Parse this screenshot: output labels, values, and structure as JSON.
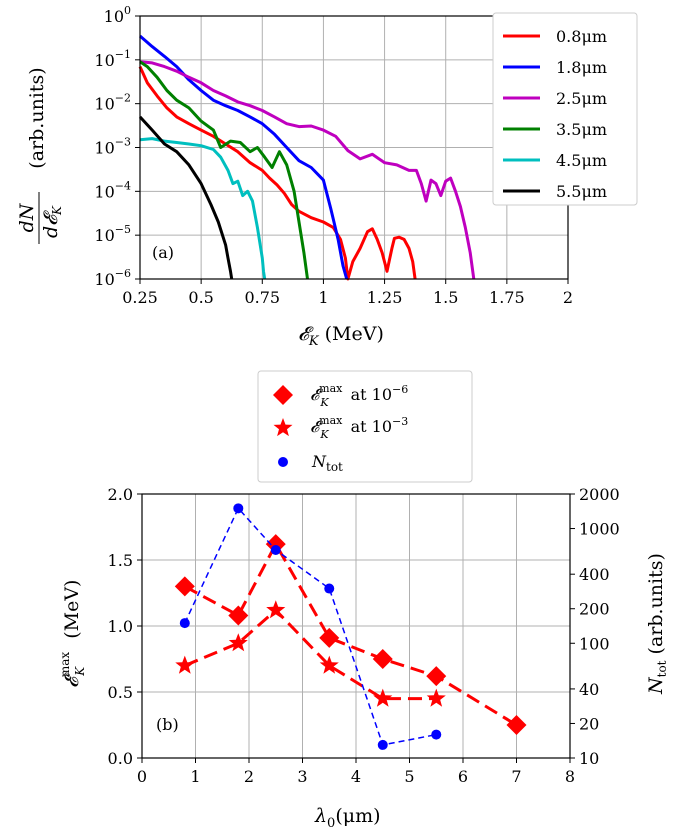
{
  "chart_data": [
    {
      "panel": "(a)",
      "type": "line",
      "xlabel": "𝓔_K (MeV)",
      "ylabel": "dN/d𝓔_K (arb.units)",
      "yscale": "log",
      "xlim": [
        0.25,
        2.0
      ],
      "ylim": [
        1e-06,
        1.0
      ],
      "x_ticks": [
        "0.25",
        "0.5",
        "0.75",
        "1",
        "1.25",
        "1.5",
        "1.75",
        "2"
      ],
      "x_tick_values": [
        0.25,
        0.5,
        0.75,
        1.0,
        1.25,
        1.5,
        1.75,
        2.0
      ],
      "y_tick_exponents": [
        "0",
        "−1",
        "−2",
        "−3",
        "−4",
        "−5",
        "−6"
      ],
      "legend_position": "top-right",
      "series": [
        {
          "name": "0.8μm",
          "color": "#ff0000",
          "x": [
            0.25,
            0.28,
            0.32,
            0.36,
            0.4,
            0.45,
            0.5,
            0.55,
            0.6,
            0.65,
            0.7,
            0.75,
            0.78,
            0.81,
            0.84,
            0.87,
            0.9,
            0.95,
            1.0,
            1.04,
            1.07,
            1.09,
            1.1,
            1.12,
            1.15,
            1.18,
            1.2,
            1.22,
            1.24,
            1.26,
            1.28,
            1.29,
            1.31,
            1.33,
            1.35,
            1.365,
            1.375
          ],
          "y": [
            0.07,
            0.03,
            0.015,
            0.008,
            0.005,
            0.0035,
            0.0025,
            0.0018,
            0.0012,
            0.0008,
            0.00045,
            0.0003,
            0.0002,
            0.00014,
            9e-05,
            5e-05,
            3.5e-05,
            2.5e-05,
            2e-05,
            1.5e-05,
            8e-06,
            3e-06,
            1e-06,
            2.5e-06,
            5e-06,
            1.2e-05,
            1.4e-05,
            8e-06,
            4e-06,
            1.5e-06,
            5e-06,
            8.5e-06,
            9e-06,
            8e-06,
            5e-06,
            2.5e-06,
            1e-06
          ]
        },
        {
          "name": "1.8μm",
          "color": "#0000ff",
          "x": [
            0.25,
            0.3,
            0.35,
            0.4,
            0.45,
            0.5,
            0.55,
            0.6,
            0.65,
            0.7,
            0.75,
            0.8,
            0.85,
            0.9,
            0.95,
            1.0,
            1.03,
            1.06,
            1.08,
            1.095
          ],
          "y": [
            0.35,
            0.2,
            0.12,
            0.07,
            0.035,
            0.02,
            0.012,
            0.009,
            0.007,
            0.005,
            0.0035,
            0.002,
            0.001,
            0.0005,
            0.00035,
            0.00018,
            4e-05,
            8e-06,
            2e-06,
            1e-06
          ]
        },
        {
          "name": "2.5μm",
          "color": "#bf00bf",
          "x": [
            0.25,
            0.3,
            0.35,
            0.4,
            0.45,
            0.5,
            0.55,
            0.6,
            0.65,
            0.7,
            0.75,
            0.8,
            0.85,
            0.9,
            0.95,
            1.0,
            1.05,
            1.1,
            1.15,
            1.2,
            1.25,
            1.3,
            1.35,
            1.38,
            1.4,
            1.42,
            1.44,
            1.46,
            1.48,
            1.5,
            1.52,
            1.54,
            1.56,
            1.58,
            1.6,
            1.615
          ],
          "y": [
            0.09,
            0.085,
            0.07,
            0.055,
            0.04,
            0.03,
            0.02,
            0.015,
            0.011,
            0.009,
            0.007,
            0.005,
            0.0035,
            0.003,
            0.0031,
            0.0025,
            0.0018,
            0.00085,
            0.00055,
            0.0007,
            0.00045,
            0.0004,
            0.0003,
            0.0003,
            0.00015,
            6e-05,
            0.00018,
            0.00015,
            8e-05,
            0.00017,
            0.0002,
            0.0001,
            4.5e-05,
            1.5e-05,
            4e-06,
            1e-06
          ]
        },
        {
          "name": "3.5μm",
          "color": "#008000",
          "x": [
            0.25,
            0.28,
            0.32,
            0.36,
            0.4,
            0.45,
            0.5,
            0.55,
            0.58,
            0.62,
            0.66,
            0.7,
            0.73,
            0.76,
            0.79,
            0.82,
            0.85,
            0.88,
            0.9,
            0.92,
            0.935
          ],
          "y": [
            0.09,
            0.07,
            0.04,
            0.02,
            0.012,
            0.008,
            0.004,
            0.0025,
            0.001,
            0.0014,
            0.0013,
            0.0008,
            0.001,
            0.0006,
            0.00035,
            0.0008,
            0.0004,
            0.0001,
            2e-05,
            4e-06,
            1e-06
          ]
        },
        {
          "name": "4.5μm",
          "color": "#00bfbf",
          "x": [
            0.25,
            0.3,
            0.35,
            0.4,
            0.45,
            0.5,
            0.55,
            0.58,
            0.61,
            0.63,
            0.65,
            0.67,
            0.69,
            0.71,
            0.73,
            0.75,
            0.755,
            0.76
          ],
          "y": [
            0.0015,
            0.0016,
            0.0014,
            0.0013,
            0.0012,
            0.0011,
            0.0009,
            0.0006,
            0.0003,
            0.00015,
            0.00017,
            8e-05,
            0.0001,
            6e-05,
            1.5e-05,
            3e-06,
            1.5e-06,
            1e-06
          ]
        },
        {
          "name": "5.5μm",
          "color": "#000000",
          "x": [
            0.25,
            0.3,
            0.35,
            0.4,
            0.45,
            0.5,
            0.54,
            0.57,
            0.6,
            0.61,
            0.62,
            0.625
          ],
          "y": [
            0.005,
            0.0025,
            0.0012,
            0.0008,
            0.0004,
            0.00015,
            5e-05,
            2e-05,
            6e-06,
            3e-06,
            1.5e-06,
            1e-06
          ]
        }
      ]
    },
    {
      "panel": "(b)",
      "type": "scatter",
      "xlabel": "λ₀(μm)",
      "ylabel": "𝓔_K^max (MeV)",
      "y2label": "N_tot (arb.units)",
      "xlim": [
        0,
        8
      ],
      "ylim": [
        0,
        2.0
      ],
      "y2scale": "log",
      "y2lim": [
        10,
        2000
      ],
      "x_ticks": [
        "0",
        "1",
        "2",
        "3",
        "4",
        "5",
        "6",
        "7",
        "8"
      ],
      "y_ticks": [
        "0.0",
        "0.5",
        "1.0",
        "1.5",
        "2.0"
      ],
      "y2_ticks": [
        "10",
        "20",
        "40",
        "100",
        "200",
        "400",
        "1000",
        "2000"
      ],
      "legend_position": "above plot",
      "series": [
        {
          "name": "𝓔_K^max at 10^−6",
          "marker": "diamond",
          "color": "#ff0000",
          "line": "dashed",
          "x": [
            0.8,
            1.8,
            2.5,
            3.5,
            4.5,
            5.5,
            7.0
          ],
          "y": [
            1.3,
            1.08,
            1.62,
            0.91,
            0.75,
            0.62,
            0.25
          ]
        },
        {
          "name": "𝓔_K^max at 10^−3",
          "marker": "star",
          "color": "#ff0000",
          "line": "dashed",
          "x": [
            0.8,
            1.8,
            2.5,
            3.5,
            4.5,
            5.5
          ],
          "y": [
            0.7,
            0.87,
            1.12,
            0.7,
            0.45,
            0.45
          ]
        },
        {
          "name": "N_tot",
          "marker": "circle",
          "color": "#0000ff",
          "line": "dashed",
          "axis": "right",
          "x": [
            0.8,
            1.8,
            2.5,
            3.5,
            4.5,
            5.5
          ],
          "y": [
            150,
            1500,
            650,
            300,
            13,
            16
          ]
        }
      ]
    }
  ],
  "legend_b": {
    "l1_base": "𝓔",
    "l1_sub": "K",
    "l1_sup": "max",
    "l1_at": "at 10",
    "l1_exp": "−6",
    "l2_base": "𝓔",
    "l2_sub": "K",
    "l2_sup": "max",
    "l2_at": "at 10",
    "l2_exp": "−3",
    "l3_base": "N",
    "l3_sub": "tot"
  },
  "labels": {
    "a_xlabel_base": "𝓔",
    "a_xlabel_sub": "K",
    "a_xlabel_unit": " (MeV)",
    "a_ylabel_num": "dN",
    "a_ylabel_den": "d𝓔",
    "a_ylabel_den_sub": "K",
    "a_ylabel_unit": "(arb.units)",
    "b_xlabel": "λ",
    "b_xlabel_sub": "0",
    "b_xlabel_unit": "(μm)",
    "b_ylabel_base": "𝓔",
    "b_ylabel_sub": "K",
    "b_ylabel_sup": "max",
    "b_ylabel_unit": " (MeV)",
    "b_y2label_base": "N",
    "b_y2label_sub": "tot",
    "b_y2label_unit": " (arb.units)"
  }
}
